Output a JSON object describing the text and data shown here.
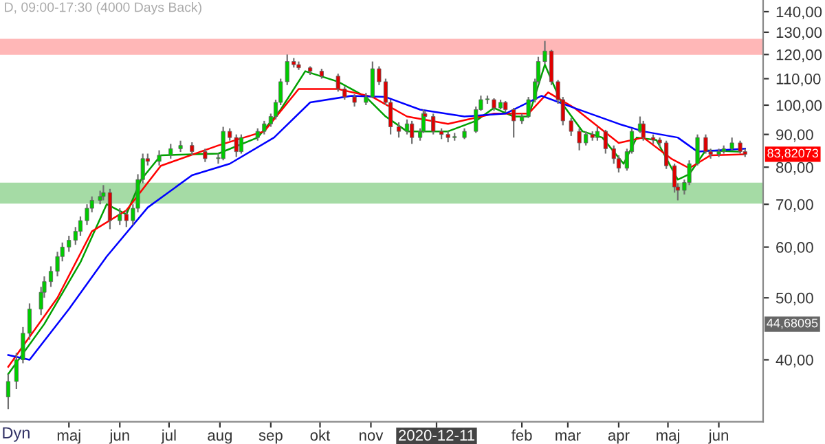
{
  "chart_data": {
    "type": "candlestick",
    "title": "D, 09:00-17:30 (4000 Days Back)",
    "x": [
      "2020-03-25",
      "2020-03-30",
      "2020-04-03",
      "2020-04-07",
      "2020-04-14",
      "2020-04-16",
      "2020-04-20",
      "2020-04-24",
      "2020-04-27",
      "2020-05-01",
      "2020-05-05",
      "2020-05-08",
      "2020-05-12",
      "2020-05-15",
      "2020-05-20",
      "2020-05-22",
      "2020-05-26",
      "2020-06-01",
      "2020-06-05",
      "2020-06-09",
      "2020-06-12",
      "2020-06-15",
      "2020-06-18",
      "2020-06-25",
      "2020-07-02",
      "2020-07-08",
      "2020-07-15",
      "2020-07-23",
      "2020-07-31",
      "2020-08-03",
      "2020-08-07",
      "2020-08-11",
      "2020-08-14",
      "2020-08-24",
      "2020-08-28",
      "2020-09-01",
      "2020-09-04",
      "2020-09-07",
      "2020-09-11",
      "2020-09-15",
      "2020-09-18",
      "2020-09-25",
      "2020-10-02",
      "2020-10-12",
      "2020-10-16",
      "2020-10-22",
      "2020-10-29",
      "2020-11-02",
      "2020-11-06",
      "2020-11-10",
      "2020-11-13",
      "2020-11-18",
      "2020-11-23",
      "2020-11-26",
      "2020-12-01",
      "2020-12-03",
      "2020-12-04",
      "2020-12-09",
      "2020-12-14",
      "2020-12-18",
      "2020-12-22",
      "2020-12-28",
      "2021-01-04",
      "2021-01-07",
      "2021-01-11",
      "2021-01-15",
      "2021-01-19",
      "2021-01-22",
      "2021-01-27",
      "2021-02-01",
      "2021-02-05",
      "2021-02-09",
      "2021-02-11",
      "2021-02-15",
      "2021-02-19",
      "2021-02-23",
      "2021-02-26",
      "2021-03-03",
      "2021-03-08",
      "2021-03-12",
      "2021-03-16",
      "2021-03-19",
      "2021-03-24",
      "2021-03-29",
      "2021-04-01",
      "2021-04-06",
      "2021-04-09",
      "2021-04-14",
      "2021-04-16",
      "2021-04-22",
      "2021-04-26",
      "2021-04-30",
      "2021-05-05",
      "2021-05-07",
      "2021-05-11",
      "2021-05-14",
      "2021-05-19",
      "2021-05-24",
      "2021-05-27",
      "2021-06-01",
      "2021-06-04",
      "2021-06-09",
      "2021-06-14",
      "2021-06-17"
    ],
    "ohlc": [
      [
        35,
        38,
        33.5,
        37
      ],
      [
        37,
        41,
        36,
        40
      ],
      [
        40,
        45,
        39.5,
        44
      ],
      [
        44,
        49,
        43,
        48
      ],
      [
        48,
        52,
        47,
        51
      ],
      [
        51,
        54,
        50,
        53
      ],
      [
        53,
        56,
        52,
        55
      ],
      [
        55,
        59,
        54,
        58
      ],
      [
        58,
        61,
        57,
        60
      ],
      [
        60,
        62.5,
        59,
        61.5
      ],
      [
        61.5,
        64.5,
        60.5,
        63.5
      ],
      [
        63.5,
        67,
        62.5,
        66
      ],
      [
        66,
        70,
        65,
        69
      ],
      [
        69,
        72,
        68,
        71
      ],
      [
        71,
        73.5,
        70,
        72
      ],
      [
        72,
        75,
        71,
        73
      ],
      [
        73,
        74,
        64,
        66
      ],
      [
        66,
        69,
        65,
        67.5
      ],
      [
        67.5,
        68.5,
        64.5,
        66
      ],
      [
        66,
        70,
        65,
        69
      ],
      [
        69,
        78,
        68,
        76.5
      ],
      [
        76.5,
        84,
        75.5,
        82.5
      ],
      [
        82.5,
        84,
        80.5,
        81.7
      ],
      [
        81.7,
        85,
        80.5,
        83.5
      ],
      [
        83.5,
        87,
        82.5,
        85.5
      ],
      [
        85.5,
        88,
        84.5,
        86.5
      ],
      [
        86.5,
        87.5,
        83.5,
        84.6
      ],
      [
        84.6,
        85.5,
        81.5,
        82.5
      ],
      [
        82.5,
        84,
        81,
        82.5
      ],
      [
        82.5,
        92.5,
        82,
        91
      ],
      [
        91,
        92,
        88,
        89
      ],
      [
        89,
        90,
        83,
        84.6
      ],
      [
        84.6,
        90,
        84,
        89
      ],
      [
        89,
        92,
        88,
        91
      ],
      [
        91,
        94.5,
        90,
        93.5
      ],
      [
        93.5,
        97,
        92.5,
        96
      ],
      [
        96,
        102,
        95,
        101
      ],
      [
        101,
        110,
        100,
        108.8
      ],
      [
        108.8,
        120,
        107.5,
        117
      ],
      [
        117,
        118.5,
        114.5,
        115.7
      ],
      [
        115.7,
        117,
        113.5,
        114.4
      ],
      [
        114.4,
        115,
        111.5,
        113
      ],
      [
        113,
        114,
        110,
        111
      ],
      [
        111,
        112,
        105,
        106
      ],
      [
        106,
        107,
        102,
        103
      ],
      [
        103,
        104,
        99.5,
        101
      ],
      [
        101,
        104.5,
        100,
        103
      ],
      [
        103,
        117,
        102.5,
        114
      ],
      [
        114,
        115,
        107.5,
        108.8
      ],
      [
        108.8,
        110,
        100,
        101
      ],
      [
        101,
        102,
        90,
        92.5
      ],
      [
        92.5,
        94,
        89,
        91
      ],
      [
        91,
        95,
        90,
        93.5
      ],
      [
        93.5,
        94.5,
        87,
        89
      ],
      [
        89,
        92,
        88,
        91
      ],
      [
        91,
        98.5,
        90.5,
        97
      ],
      [
        97,
        98,
        95,
        96
      ],
      [
        96,
        97,
        90,
        91
      ],
      [
        91,
        92,
        88.5,
        90
      ],
      [
        90,
        91,
        87.5,
        89
      ],
      [
        89,
        90.5,
        88,
        89
      ],
      [
        89,
        92,
        88.5,
        91
      ],
      [
        91,
        99.5,
        90.5,
        98.4
      ],
      [
        98.4,
        103.5,
        98,
        102
      ],
      [
        102,
        103.5,
        100.5,
        102
      ],
      [
        102,
        102.5,
        98,
        99
      ],
      [
        99,
        102,
        98.5,
        101
      ],
      [
        101,
        101.5,
        97.5,
        98.4
      ],
      [
        98.4,
        99,
        89,
        94.5
      ],
      [
        94.5,
        97,
        93.5,
        96
      ],
      [
        96,
        103,
        95.5,
        102
      ],
      [
        102,
        110,
        101,
        108.8
      ],
      [
        108.8,
        119,
        108,
        117
      ],
      [
        117,
        126,
        116,
        121.5
      ],
      [
        121.5,
        122,
        107.5,
        108.8
      ],
      [
        108.8,
        109.5,
        100.5,
        102
      ],
      [
        102,
        103,
        93,
        94.5
      ],
      [
        94.5,
        95.5,
        89.5,
        91
      ],
      [
        91,
        92,
        85,
        87.3
      ],
      [
        87.3,
        91,
        86.5,
        90
      ],
      [
        90,
        91,
        88,
        89
      ],
      [
        89,
        92.5,
        88,
        91
      ],
      [
        91,
        91.5,
        84,
        85.5
      ],
      [
        85.5,
        86.5,
        81,
        82.5
      ],
      [
        82.5,
        83.5,
        78.5,
        79.7
      ],
      [
        79.7,
        85.5,
        79,
        84.6
      ],
      [
        84.6,
        92,
        84,
        91
      ],
      [
        91,
        96,
        90.5,
        93.5
      ],
      [
        93.5,
        94.5,
        88,
        89
      ],
      [
        89,
        90,
        87,
        88.2
      ],
      [
        88.2,
        89,
        86,
        87.3
      ],
      [
        87.3,
        88,
        79.5,
        80.4
      ],
      [
        80.4,
        81,
        73,
        74.5
      ],
      [
        74.5,
        75.5,
        71,
        73.6
      ],
      [
        73.6,
        76.5,
        72.5,
        75.7
      ],
      [
        75.7,
        82,
        75,
        81
      ],
      [
        81,
        90,
        80.5,
        89
      ],
      [
        89,
        90,
        84,
        84.6
      ],
      [
        84.6,
        85.5,
        82.5,
        83.8
      ],
      [
        83.8,
        85.5,
        83,
        84.6
      ],
      [
        84.6,
        86.5,
        84,
        85.5
      ],
      [
        85.5,
        89,
        85,
        87.3
      ],
      [
        87.3,
        88,
        84,
        84.6
      ],
      [
        84.6,
        85.5,
        83,
        83.8
      ]
    ],
    "series": [
      {
        "type": "line",
        "color": "#00a000",
        "x": [
          "2020-03-25",
          "2020-04-16",
          "2020-05-08",
          "2020-05-24",
          "2020-06-05",
          "2020-06-14",
          "2020-06-26",
          "2020-07-31",
          "2020-08-24",
          "2020-09-07",
          "2020-09-22",
          "2020-10-12",
          "2020-10-29",
          "2020-11-10",
          "2020-11-23",
          "2020-12-18",
          "2021-01-04",
          "2021-01-15",
          "2021-01-27",
          "2021-02-05",
          "2021-02-15",
          "2021-02-25",
          "2021-03-10",
          "2021-03-22",
          "2021-04-04",
          "2021-04-12",
          "2021-04-24",
          "2021-05-07",
          "2021-05-14",
          "2021-05-24",
          "2021-06-14"
        ],
        "values": [
          38,
          45.5,
          56.8,
          70,
          67.5,
          76.5,
          83.5,
          84,
          89,
          98.4,
          113,
          108.8,
          103,
          96,
          91,
          91,
          94.5,
          99,
          96,
          96,
          115.7,
          101,
          91,
          89,
          81,
          89,
          88.2,
          76.5,
          78,
          85,
          84.6
        ]
      },
      {
        "type": "line",
        "color": "#ff0000",
        "x": [
          "2020-03-25",
          "2020-04-24",
          "2020-05-15",
          "2020-06-05",
          "2020-06-26",
          "2020-07-31",
          "2020-08-28",
          "2020-09-18",
          "2020-10-12",
          "2020-11-02",
          "2020-11-23",
          "2020-12-18",
          "2021-01-15",
          "2021-02-05",
          "2021-02-17",
          "2021-03-05",
          "2021-04-01",
          "2021-04-16",
          "2021-05-03",
          "2021-05-14",
          "2021-05-27",
          "2021-06-17"
        ],
        "values": [
          39,
          50,
          63.5,
          68.5,
          80.4,
          86.5,
          91,
          106,
          106,
          103,
          96,
          93.5,
          97,
          97,
          104.7,
          99,
          87.3,
          89,
          82.5,
          79.7,
          83.5,
          83.8
        ]
      },
      {
        "type": "line",
        "color": "#0000ff",
        "x": [
          "2020-03-25",
          "2020-04-07",
          "2020-05-01",
          "2020-05-24",
          "2020-06-18",
          "2020-07-15",
          "2020-08-07",
          "2020-09-03",
          "2020-09-25",
          "2020-10-20",
          "2020-11-10",
          "2020-12-01",
          "2020-12-28",
          "2021-01-22",
          "2021-02-13",
          "2021-03-05",
          "2021-04-01",
          "2021-04-16",
          "2021-05-07",
          "2021-05-19",
          "2021-06-17"
        ],
        "values": [
          40.7,
          40,
          48,
          58,
          69.2,
          77.7,
          81,
          89,
          101,
          103.4,
          103,
          98.4,
          96,
          97,
          103.4,
          99,
          93.5,
          91,
          89,
          84.6,
          85.5
        ]
      }
    ],
    "xlim": [
      "2020-03-20",
      "2021-06-28"
    ],
    "xticks": [
      {
        "value": "2020-05-01",
        "label": "maj"
      },
      {
        "value": "2020-06-01",
        "label": "jun"
      },
      {
        "value": "2020-07-01",
        "label": "jul"
      },
      {
        "value": "2020-08-01",
        "label": "aug"
      },
      {
        "value": "2020-09-01",
        "label": "sep"
      },
      {
        "value": "2020-10-01",
        "label": "okt"
      },
      {
        "value": "2020-11-01",
        "label": "nov"
      },
      {
        "value": "2020-12-11",
        "label": "2020-12-11"
      },
      {
        "value": "2021-02-01",
        "label": "feb"
      },
      {
        "value": "2021-03-01",
        "label": "mar"
      },
      {
        "value": "2021-04-01",
        "label": "apr"
      },
      {
        "value": "2021-05-01",
        "label": "maj"
      },
      {
        "value": "2021-06-01",
        "label": "jun"
      }
    ],
    "log": true,
    "ylim": [
      32,
      146
    ],
    "yticks": [
      {
        "value": 40,
        "label": "40,00"
      },
      {
        "value": 50,
        "label": "50,00"
      },
      {
        "value": 60,
        "label": "60,00"
      },
      {
        "value": 70,
        "label": "70,00"
      },
      {
        "value": 80,
        "label": "80,00"
      },
      {
        "value": 90,
        "label": "90,00"
      },
      {
        "value": 100,
        "label": "100,00"
      },
      {
        "value": 110,
        "label": "110,00"
      },
      {
        "value": 120,
        "label": "120,00"
      },
      {
        "value": 130,
        "label": "130,00"
      },
      {
        "value": 140,
        "label": "140,00"
      }
    ],
    "bands": [
      {
        "axis": "y",
        "from": 120.3,
        "to": 126.5,
        "color": "#ff9999"
      },
      {
        "axis": "y",
        "from": 70.4,
        "to": 75.4,
        "color": "#80cc80"
      }
    ],
    "annotations": [
      {
        "text": "83,82073",
        "x": "2021-06-17",
        "y": 83.82073
      },
      "44,68095",
      "Dyn"
    ],
    "grid": false,
    "legend": false
  }
}
